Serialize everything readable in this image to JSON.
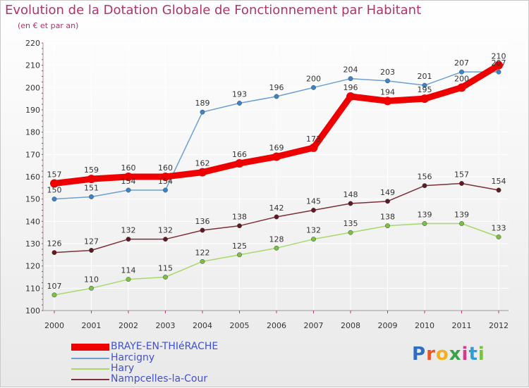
{
  "header": {
    "title": "Evolution de la Dotation Globale de Fonctionnement par Habitant",
    "subtitle": "(en € et par an)"
  },
  "logo": {
    "text": "Proxiti"
  },
  "colors": {
    "title": "#b0336c",
    "axis_text": "#333333",
    "legend_text": "#4050d0",
    "grid": "#ffffff",
    "axis_tick": "#cc3366"
  },
  "chart_data": {
    "type": "line",
    "title": "Evolution de la Dotation Globale de Fonctionnement par Habitant",
    "subtitle": "(en € et par an)",
    "xlabel": "",
    "ylabel": "",
    "x": [
      "2000",
      "2001",
      "2002",
      "2003",
      "2004",
      "2005",
      "2006",
      "2007",
      "2008",
      "2009",
      "2010",
      "2011",
      "2012"
    ],
    "ylim": [
      100,
      220
    ],
    "yticks": [
      "100",
      "110",
      "120",
      "130",
      "140",
      "150",
      "160",
      "170",
      "180",
      "190",
      "200",
      "210",
      "220"
    ],
    "grid": true,
    "legend_position": "bottom-left",
    "series": [
      {
        "key": "harcigny",
        "name": "Harcigny",
        "color": "#6b9fd4",
        "dot": "#3d83c8",
        "thick": false,
        "values": [
          150,
          151,
          154,
          154,
          189,
          193,
          196,
          200,
          204,
          203,
          201,
          207,
          207
        ]
      },
      {
        "key": "hary",
        "name": "Hary",
        "color": "#a6d96a",
        "dot": "#7ac143",
        "thick": false,
        "values": [
          107,
          110,
          114,
          115,
          122,
          125,
          128,
          132,
          135,
          138,
          139,
          139,
          133
        ]
      },
      {
        "key": "nampcelles",
        "name": "Nampcelles-la-Cour",
        "color": "#7b2f36",
        "dot": "#5e1a20",
        "thick": false,
        "values": [
          126,
          127,
          132,
          132,
          136,
          138,
          142,
          145,
          148,
          149,
          156,
          157,
          154
        ]
      },
      {
        "key": "braye",
        "name": "BRAYE-EN-THIéRACHE",
        "color": "#ee0000",
        "dot": "#ee0000",
        "thick": true,
        "values": [
          157,
          159,
          160,
          160,
          162,
          166,
          169,
          173,
          196,
          194,
          195,
          200,
          210
        ]
      }
    ],
    "legend_order": [
      "braye",
      "harcigny",
      "hary",
      "nampcelles"
    ]
  }
}
